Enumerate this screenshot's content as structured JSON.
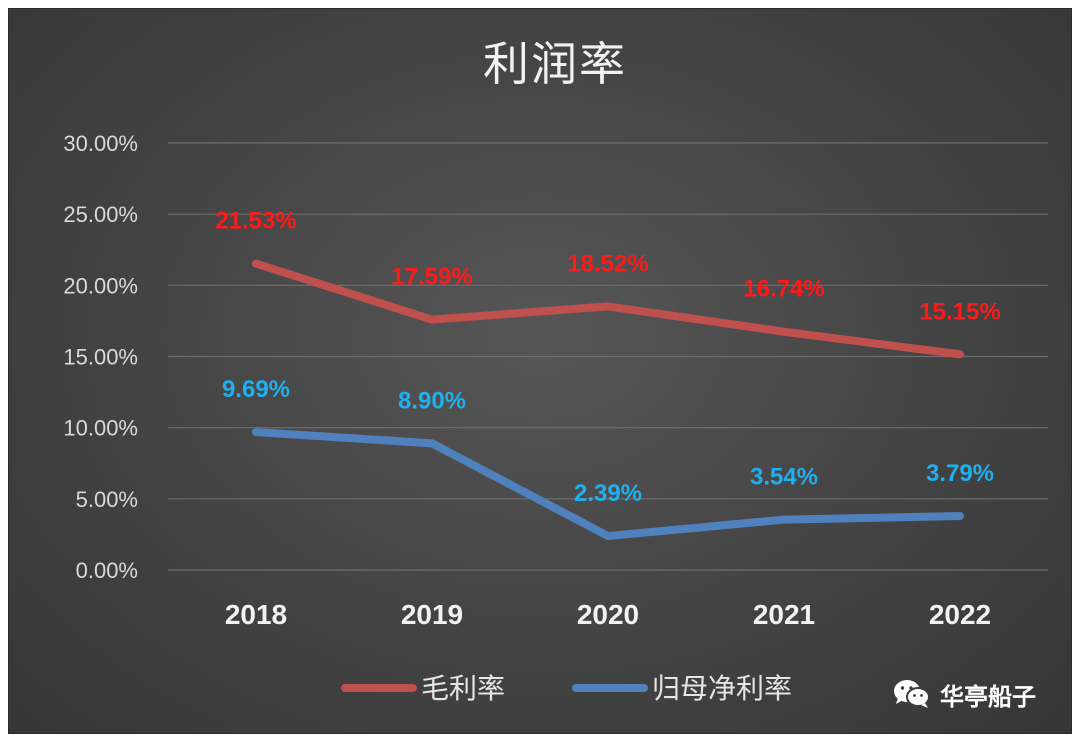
{
  "chart_data": {
    "type": "line",
    "title": "利润率",
    "categories": [
      "2018",
      "2019",
      "2020",
      "2021",
      "2022"
    ],
    "y_ticks": [
      "0.00%",
      "5.00%",
      "10.00%",
      "15.00%",
      "20.00%",
      "25.00%",
      "30.00%"
    ],
    "ylim": [
      0,
      30
    ],
    "grid": true,
    "legend_position": "bottom",
    "series": [
      {
        "name": "毛利率",
        "color": "#c0504d",
        "label_color": "#ff1a1a",
        "values": [
          21.53,
          17.59,
          18.52,
          16.74,
          15.15
        ],
        "labels": [
          "21.53%",
          "17.59%",
          "18.52%",
          "16.74%",
          "15.15%"
        ]
      },
      {
        "name": "归母净利率",
        "color": "#4f81bd",
        "label_color": "#1fb0f0",
        "values": [
          9.69,
          8.9,
          2.39,
          3.54,
          3.79
        ],
        "labels": [
          "9.69%",
          "8.90%",
          "2.39%",
          "3.54%",
          "3.79%"
        ]
      }
    ]
  },
  "watermark": {
    "icon": "wechat-icon",
    "text": "华亭船子"
  }
}
